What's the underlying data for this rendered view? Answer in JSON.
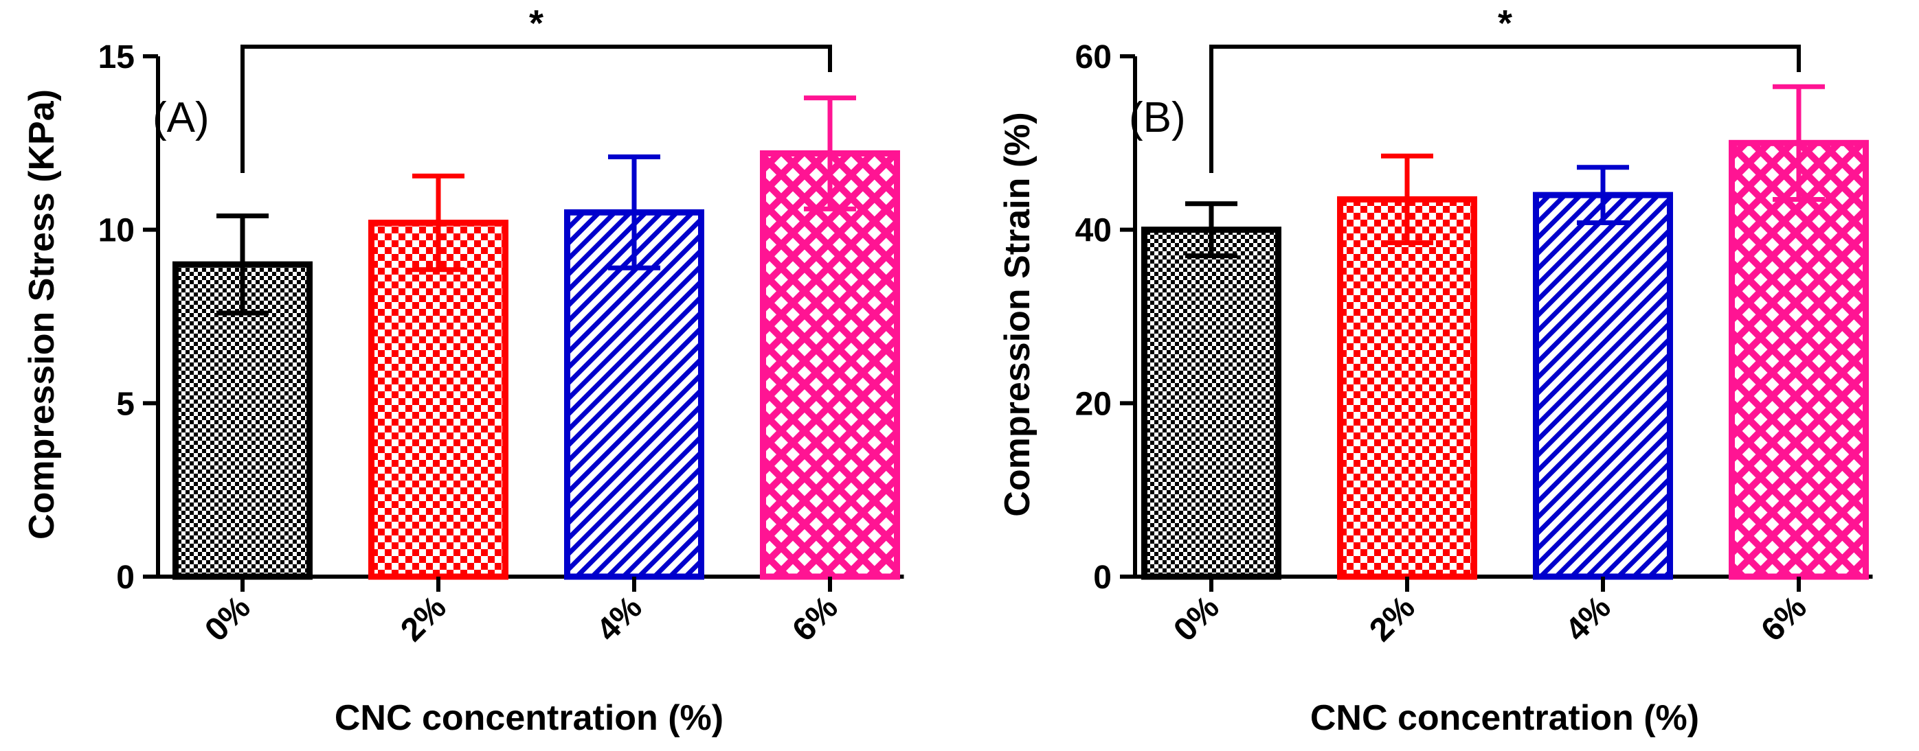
{
  "chart_data": [
    {
      "type": "bar",
      "panel_label": "(A)",
      "title": "",
      "xlabel": "CNC concentration (%)",
      "ylabel": "Compression Stress (KPa)",
      "ylim": [
        0,
        15
      ],
      "yticks": [
        "0",
        "5",
        "10",
        "15"
      ],
      "categories": [
        "0%",
        "2%",
        "4%",
        "6%"
      ],
      "values": [
        9.0,
        10.2,
        10.5,
        12.2
      ],
      "errors": [
        1.4,
        1.35,
        1.6,
        1.6
      ],
      "colors": [
        "#000000",
        "#ff0000",
        "#0000cc",
        "#ff1493"
      ],
      "patterns": [
        "fine-checker",
        "checker",
        "diagonal-hatch",
        "diamond-lattice"
      ],
      "significance": {
        "from": "0%",
        "to": "6%",
        "label": "*"
      }
    },
    {
      "type": "bar",
      "panel_label": "(B)",
      "title": "",
      "xlabel": "CNC concentration (%)",
      "ylabel": "Compression  Strain (%)",
      "ylim": [
        0,
        60
      ],
      "yticks": [
        "0",
        "20",
        "40",
        "60"
      ],
      "categories": [
        "0%",
        "2%",
        "4%",
        "6%"
      ],
      "values": [
        40.0,
        43.5,
        44.0,
        50.0
      ],
      "errors": [
        3.0,
        5.0,
        3.2,
        6.5
      ],
      "colors": [
        "#000000",
        "#ff0000",
        "#0000cc",
        "#ff1493"
      ],
      "patterns": [
        "fine-checker",
        "checker",
        "diagonal-hatch",
        "diamond-lattice"
      ],
      "significance": {
        "from": "0%",
        "to": "6%",
        "label": "*"
      }
    }
  ]
}
